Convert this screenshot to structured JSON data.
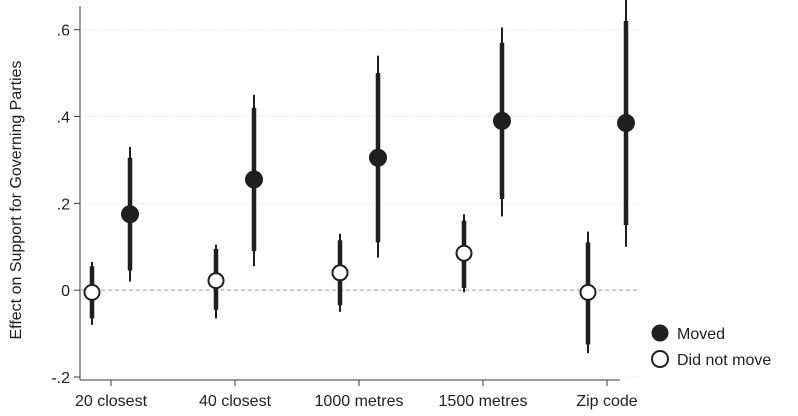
{
  "chart_data": {
    "type": "scatter",
    "title": "",
    "xlabel": "",
    "ylabel": "Effect on Support for Governing Parties",
    "categories": [
      "20 closest",
      "40 closest",
      "1000 metres",
      "1500 metres",
      "Zip code"
    ],
    "ylim": [
      -0.2,
      0.65
    ],
    "yticks": [
      -0.2,
      0,
      0.2,
      0.4,
      0.6
    ],
    "ytick_labels": [
      "-.2",
      "0",
      ".2",
      ".4",
      ".6"
    ],
    "grid": true,
    "reference_line": 0,
    "legend_position": "bottom-right",
    "series": [
      {
        "name": "Moved",
        "marker": "filled-circle",
        "color": "#1f1f1f",
        "points": [
          {
            "category": "20 closest",
            "estimate": 0.175,
            "ci90": [
              0.045,
              0.305
            ],
            "ci95": [
              0.02,
              0.33
            ]
          },
          {
            "category": "40 closest",
            "estimate": 0.255,
            "ci90": [
              0.09,
              0.42
            ],
            "ci95": [
              0.055,
              0.45
            ]
          },
          {
            "category": "1000 metres",
            "estimate": 0.305,
            "ci90": [
              0.11,
              0.5
            ],
            "ci95": [
              0.075,
              0.54
            ]
          },
          {
            "category": "1500 metres",
            "estimate": 0.39,
            "ci90": [
              0.21,
              0.57
            ],
            "ci95": [
              0.17,
              0.605
            ]
          },
          {
            "category": "Zip code",
            "estimate": 0.385,
            "ci90": [
              0.15,
              0.62
            ],
            "ci95": [
              0.1,
              0.67
            ]
          }
        ]
      },
      {
        "name": "Did not move",
        "marker": "hollow-circle",
        "color": "#1f1f1f",
        "points": [
          {
            "category": "20 closest",
            "estimate": -0.005,
            "ci90": [
              -0.065,
              0.055
            ],
            "ci95": [
              -0.08,
              0.065
            ]
          },
          {
            "category": "40 closest",
            "estimate": 0.022,
            "ci90": [
              -0.045,
              0.095
            ],
            "ci95": [
              -0.065,
              0.105
            ]
          },
          {
            "category": "1000 metres",
            "estimate": 0.04,
            "ci90": [
              -0.035,
              0.115
            ],
            "ci95": [
              -0.05,
              0.13
            ]
          },
          {
            "category": "1500 metres",
            "estimate": 0.085,
            "ci90": [
              0.005,
              0.16
            ],
            "ci95": [
              -0.005,
              0.175
            ]
          },
          {
            "category": "Zip code",
            "estimate": -0.005,
            "ci90": [
              -0.125,
              0.11
            ],
            "ci95": [
              -0.145,
              0.135
            ]
          }
        ]
      }
    ]
  }
}
